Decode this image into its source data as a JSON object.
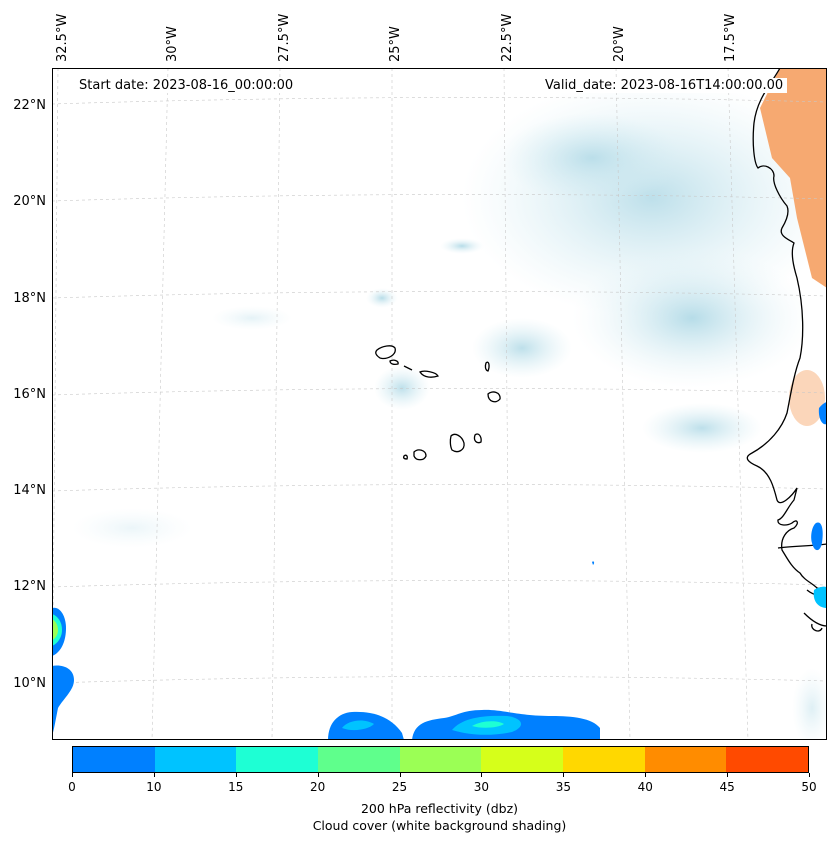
{
  "map": {
    "longitude_labels": [
      "32.5°W",
      "30°W",
      "27.5°W",
      "25°W",
      "22.5°W",
      "20°W",
      "17.5°W"
    ],
    "latitude_labels": [
      "22°N",
      "20°N",
      "18°N",
      "16°N",
      "14°N",
      "12°N",
      "10°N"
    ],
    "start_date": "Start date: 2023-08-16_00:00:00",
    "valid_date": "Valid_date: 2023-08-16T14:00:00.00"
  },
  "colorbar": {
    "ticks": [
      "0",
      "10",
      "15",
      "20",
      "25",
      "30",
      "35",
      "40",
      "45",
      "50"
    ],
    "colors": [
      "#0080ff",
      "#00c3ff",
      "#1effd4",
      "#5fff8c",
      "#9bff55",
      "#d6ff1a",
      "#ffd800",
      "#ff8c00",
      "#ff4a00"
    ],
    "label": "200 hPa reflectivity (dbz)",
    "sublabel": "Cloud cover (white background shading)"
  }
}
